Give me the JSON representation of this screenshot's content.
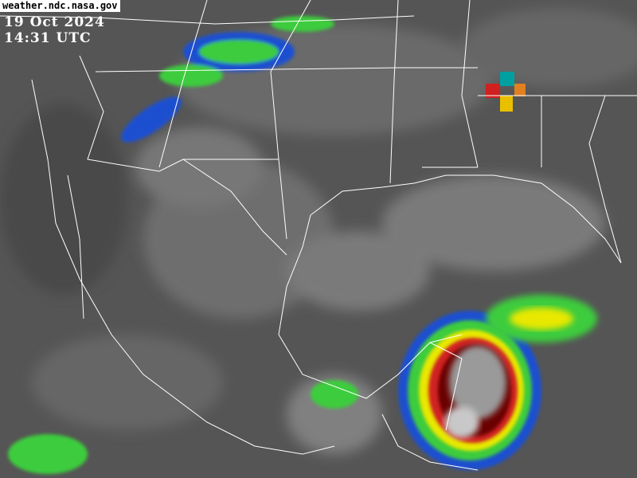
{
  "source_credit": "weather.ndc.nasa.gov",
  "date": "19 Oct 2024",
  "time": "14:31 UTC",
  "imagery": {
    "type": "infrared satellite, enhanced color",
    "region": "Gulf of Mexico / Mexico / southern United States",
    "colors": {
      "background": "#5a5a5a",
      "land_borders": "#ffffff",
      "cold_tops_blue": "#1e50d0",
      "green": "#3ccc3c",
      "yellow": "#e8e800",
      "red": "#d02020",
      "dark_red": "#6a0000"
    }
  }
}
